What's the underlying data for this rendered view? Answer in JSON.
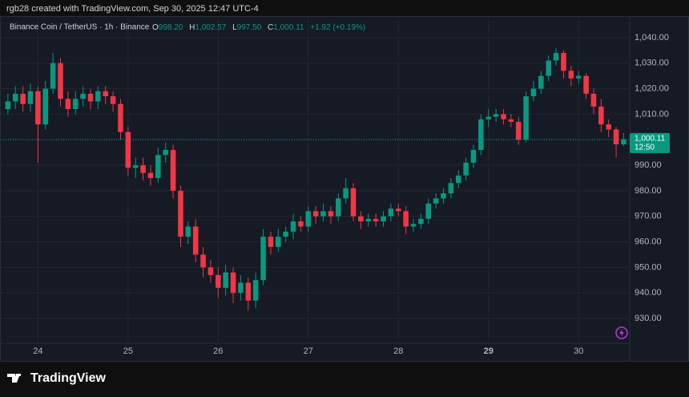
{
  "header": {
    "credit": "rgb28 created with TradingView.com, Sep 30, 2025 12:47 UTC-4"
  },
  "footer": {
    "brand": "TradingView"
  },
  "chart_data": {
    "type": "candlestick",
    "title": "Binance Coin / TetherUS · 1h · Binance",
    "legend": {
      "o_label": "O",
      "o": "998.20",
      "h_label": "H",
      "h": "1,002.57",
      "l_label": "L",
      "l": "997.50",
      "c_label": "C",
      "c": "1,000.11",
      "change": "+1.92 (+0.19%)"
    },
    "last_price_label": "1,000.11",
    "countdown": "12:50",
    "up_color": "#089981",
    "down_color": "#f23645",
    "grid": true,
    "xlim": [
      -0.2,
      82.7
    ],
    "xticks": [
      {
        "value": 4,
        "label": "24"
      },
      {
        "value": 16,
        "label": "25"
      },
      {
        "value": 28,
        "label": "26"
      },
      {
        "value": 40,
        "label": "27"
      },
      {
        "value": 52,
        "label": "28"
      },
      {
        "value": 64,
        "label": "29"
      },
      {
        "value": 76,
        "label": "30"
      }
    ],
    "ylim": [
      914.3,
      1045.3
    ],
    "yticks": [
      {
        "value": 930,
        "label": "930.00"
      },
      {
        "value": 940,
        "label": "940.00"
      },
      {
        "value": 950,
        "label": "950.00"
      },
      {
        "value": 960,
        "label": "960.00"
      },
      {
        "value": 970,
        "label": "970.00"
      },
      {
        "value": 980,
        "label": "980.00"
      },
      {
        "value": 990,
        "label": "990.00"
      },
      {
        "value": 1000,
        "label": "1,000.00"
      },
      {
        "value": 1010,
        "label": "1,010.00"
      },
      {
        "value": 1020,
        "label": "1,020.00"
      },
      {
        "value": 1030,
        "label": "1,030.00"
      },
      {
        "value": 1040,
        "label": "1,040.00"
      }
    ],
    "open": [
      1012,
      1015,
      1018,
      1014,
      1019,
      1006,
      1020,
      1030,
      1016,
      1012,
      1016,
      1018,
      1015,
      1019,
      1017,
      1014,
      1003,
      989,
      990,
      987,
      985,
      994,
      996,
      980,
      962,
      966,
      955,
      950,
      947,
      942,
      948,
      940,
      944,
      937,
      945,
      962,
      958,
      962,
      964,
      968,
      966,
      972,
      970,
      972,
      970,
      977,
      981,
      970,
      968,
      969,
      968,
      970,
      973,
      972,
      966,
      967,
      969,
      975,
      977,
      979,
      983,
      986,
      991,
      996,
      1008,
      1009,
      1010,
      1008,
      1007,
      1000,
      1017,
      1020,
      1025,
      1031,
      1034,
      1027,
      1024,
      1025,
      1018,
      1013,
      1006,
      1004,
      998.2
    ],
    "high": [
      1018,
      1021,
      1021,
      1022,
      1021,
      1023,
      1034,
      1032,
      1019,
      1019,
      1021,
      1020,
      1021,
      1021,
      1019,
      1016,
      1005,
      993,
      993,
      990,
      997,
      999,
      998,
      982,
      968,
      969,
      958,
      953,
      950,
      951,
      950,
      947,
      946,
      948,
      965,
      964,
      965,
      966,
      971,
      970,
      974,
      974,
      975,
      974,
      979,
      985,
      983,
      972,
      971,
      971,
      972,
      975,
      975,
      974,
      969,
      971,
      977,
      979,
      981,
      985,
      988,
      993,
      998,
      1010,
      1012,
      1012,
      1012,
      1010,
      1009,
      1019,
      1023,
      1027,
      1033,
      1036,
      1035,
      1029,
      1027,
      1026,
      1020,
      1016,
      1008,
      1005,
      1002.57
    ],
    "low": [
      1010,
      1012,
      1011,
      1011,
      991,
      1004,
      1018,
      1013,
      1009,
      1010,
      1013,
      1012,
      1012,
      1014,
      1011,
      1000,
      986,
      985,
      984,
      982,
      983,
      991,
      977,
      958,
      959,
      952,
      946,
      944,
      938,
      939,
      936,
      937,
      933,
      934,
      943,
      955,
      956,
      960,
      961,
      964,
      964,
      967,
      968,
      967,
      968,
      975,
      968,
      965,
      966,
      966,
      966,
      968,
      970,
      963,
      964,
      965,
      967,
      973,
      975,
      977,
      981,
      984,
      989,
      994,
      1005,
      1007,
      1006,
      1005,
      998,
      999,
      1015,
      1018,
      1023,
      1029,
      1024,
      1021,
      1022,
      1016,
      1010,
      1003,
      1001,
      993,
      997.5
    ],
    "close": [
      1015,
      1018,
      1014,
      1019,
      1006,
      1020,
      1030,
      1016,
      1012,
      1016,
      1018,
      1015,
      1019,
      1017,
      1014,
      1003,
      989,
      990,
      987,
      985,
      994,
      996,
      980,
      962,
      966,
      955,
      950,
      947,
      942,
      948,
      940,
      944,
      937,
      945,
      962,
      958,
      962,
      964,
      968,
      966,
      972,
      970,
      972,
      970,
      977,
      981,
      970,
      968,
      969,
      968,
      970,
      973,
      972,
      966,
      967,
      969,
      975,
      977,
      979,
      983,
      986,
      991,
      996,
      1008,
      1009,
      1010,
      1008,
      1007,
      1000,
      1017,
      1020,
      1025,
      1031,
      1034,
      1027,
      1024,
      1025,
      1018,
      1013,
      1006,
      1004,
      998.2,
      1000.11
    ]
  }
}
